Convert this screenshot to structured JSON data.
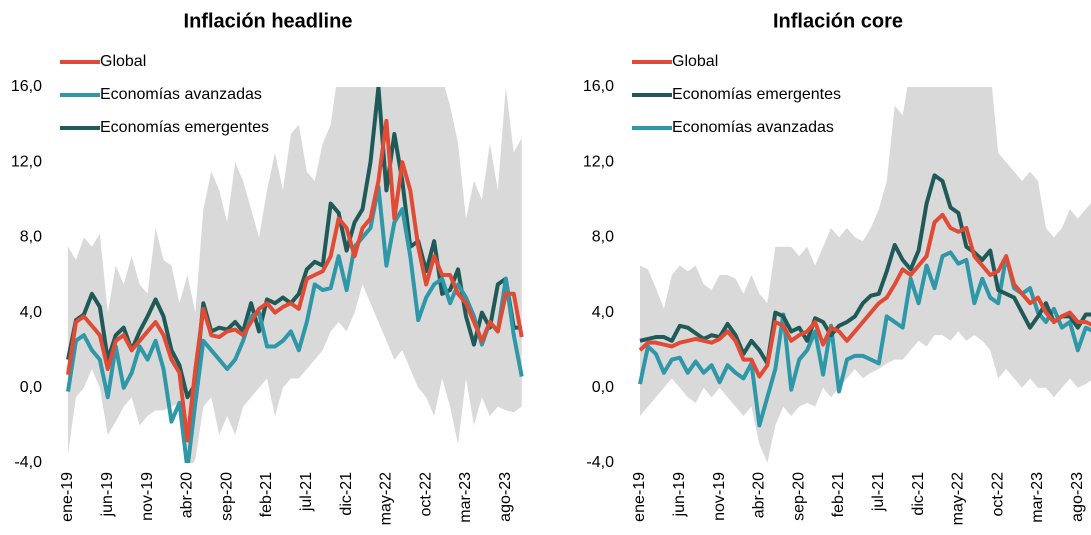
{
  "chart_data": [
    {
      "type": "line",
      "title": "Inflación headline",
      "categories": [
        "ene-19",
        null,
        null,
        null,
        null,
        "jun-19",
        null,
        null,
        null,
        null,
        "nov-19",
        null,
        null,
        null,
        null,
        "abr-20",
        null,
        null,
        null,
        null,
        "sep-20",
        null,
        null,
        null,
        null,
        "feb-21",
        null,
        null,
        null,
        null,
        "jul-21",
        null,
        null,
        null,
        null,
        "dic-21",
        null,
        null,
        null,
        null,
        "may-22",
        null,
        null,
        null,
        null,
        "oct-22",
        null,
        null,
        null,
        null,
        "mar-23",
        null,
        null,
        null,
        null,
        "ago-23",
        null,
        null
      ],
      "ylim": [
        -4,
        16
      ],
      "yticks": [
        {
          "value": -4,
          "label": "-4,0"
        },
        {
          "value": 0,
          "label": "0,0"
        },
        {
          "value": 4,
          "label": "4,0"
        },
        {
          "value": 8,
          "label": "8,0"
        },
        {
          "value": 12,
          "label": "12,0"
        },
        {
          "value": 16,
          "label": "16,0"
        }
      ],
      "legend": "top-left",
      "band": {
        "color": "#d9d9d9",
        "upper": [
          7.5,
          6.8,
          8.0,
          7.5,
          8.2,
          4.0,
          6.5,
          5.5,
          7.0,
          5.5,
          5.0,
          8.5,
          6.8,
          6.5,
          4.5,
          6.0,
          4.0,
          9.5,
          11.5,
          10.5,
          8.8,
          12.0,
          11.0,
          9.5,
          8.0,
          10.5,
          12.5,
          10.5,
          13.5,
          14.0,
          11.5,
          11.0,
          13.0,
          14.0,
          17.0,
          17.0,
          17.0,
          17.0,
          17.0,
          17.0,
          17.0,
          17.0,
          17.0,
          17.0,
          17.0,
          17.0,
          17.0,
          16.5,
          15.0,
          13.0,
          9.0,
          11.0,
          10.0,
          13.0,
          10.5,
          16.0,
          12.5,
          13.3
        ],
        "lower": [
          -3.5,
          -0.5,
          0.0,
          1.0,
          0.0,
          -2.5,
          -1.8,
          -1.0,
          -0.5,
          -2.0,
          -1.5,
          -1.2,
          -1.2,
          -1.0,
          -0.8,
          -4.5,
          -3.8,
          -1.0,
          -0.5,
          -2.5,
          -1.5,
          -2.5,
          -1.0,
          -0.5,
          0.0,
          0.5,
          -1.5,
          0.0,
          0.5,
          0.5,
          1.0,
          1.5,
          2.0,
          3.0,
          3.5,
          3.0,
          4.0,
          5.5,
          4.5,
          3.5,
          2.5,
          1.5,
          2.0,
          1.0,
          0.0,
          -0.5,
          -1.5,
          0.5,
          -1.0,
          -3.0,
          0.5,
          -2.0,
          -0.5,
          -1.5,
          -1.0,
          -1.2,
          -1.3,
          -1.0
        ]
      },
      "series": [
        {
          "name": "Global",
          "color": "#e04b35",
          "values": [
            0.7,
            3.5,
            3.8,
            3.3,
            2.8,
            1.0,
            2.5,
            2.8,
            2.0,
            2.5,
            3.0,
            3.5,
            2.8,
            1.5,
            0.8,
            -2.8,
            1.0,
            4.2,
            2.8,
            2.7,
            3.0,
            3.1,
            2.8,
            3.5,
            4.2,
            4.5,
            4.0,
            4.3,
            4.5,
            4.2,
            5.8,
            6.0,
            6.2,
            7.0,
            9.0,
            8.5,
            7.0,
            8.5,
            9.0,
            11.0,
            14.2,
            9.0,
            12.0,
            10.5,
            7.5,
            5.5,
            7.0,
            6.0,
            6.0,
            5.0,
            4.5,
            3.5,
            2.5,
            3.5,
            3.0,
            5.0,
            5.0,
            2.7
          ]
        },
        {
          "name": "Economías avanzadas",
          "color": "#2e97a8",
          "values": [
            -0.2,
            2.5,
            2.8,
            2.0,
            1.5,
            -0.5,
            2.2,
            0.0,
            0.8,
            2.2,
            1.5,
            2.5,
            1.0,
            -1.8,
            -0.8,
            -4.3,
            -0.8,
            2.5,
            2.0,
            1.5,
            1.0,
            1.5,
            2.5,
            3.8,
            4.0,
            2.2,
            2.2,
            2.5,
            3.0,
            2.0,
            3.5,
            5.5,
            5.2,
            5.3,
            7.0,
            5.2,
            7.5,
            8.0,
            8.5,
            10.7,
            6.5,
            8.8,
            9.5,
            7.0,
            3.6,
            4.8,
            5.5,
            5.8,
            4.5,
            5.5,
            4.8,
            3.8,
            2.3,
            3.5,
            3.0,
            5.8,
            2.8,
            0.6
          ]
        },
        {
          "name": "Economías emergentes",
          "color": "#1f5a58",
          "values": [
            1.5,
            3.6,
            3.9,
            5.0,
            4.3,
            1.5,
            2.8,
            3.2,
            2.0,
            3.0,
            3.8,
            4.7,
            3.8,
            2.0,
            1.2,
            -0.5,
            0.2,
            4.5,
            3.0,
            3.2,
            3.1,
            3.5,
            3.0,
            4.5,
            3.0,
            4.7,
            4.5,
            4.8,
            4.5,
            5.0,
            6.3,
            6.7,
            6.5,
            9.8,
            9.3,
            7.3,
            8.8,
            9.5,
            12.0,
            16.0,
            10.5,
            13.5,
            11.0,
            7.5,
            7.8,
            6.2,
            7.8,
            5.0,
            5.2,
            6.3,
            3.8,
            2.3,
            4.0,
            3.2,
            5.5,
            5.8,
            3.2,
            3.2
          ]
        }
      ]
    },
    {
      "type": "line",
      "title": "Inflación core",
      "categories": [
        "ene-19",
        null,
        null,
        null,
        null,
        "jun-19",
        null,
        null,
        null,
        null,
        "nov-19",
        null,
        null,
        null,
        null,
        "abr-20",
        null,
        null,
        null,
        null,
        "sep-20",
        null,
        null,
        null,
        null,
        "feb-21",
        null,
        null,
        null,
        null,
        "jul-21",
        null,
        null,
        null,
        null,
        "dic-21",
        null,
        null,
        null,
        null,
        "may-22",
        null,
        null,
        null,
        null,
        "oct-22",
        null,
        null,
        null,
        null,
        "mar-23",
        null,
        null,
        null,
        null,
        "ago-23",
        null,
        null
      ],
      "ylim": [
        -4,
        16
      ],
      "yticks": [
        {
          "value": -4,
          "label": "-4,0"
        },
        {
          "value": 0,
          "label": "0,0"
        },
        {
          "value": 4,
          "label": "4,0"
        },
        {
          "value": 8,
          "label": "8,0"
        },
        {
          "value": 12,
          "label": "12,0"
        },
        {
          "value": 16,
          "label": "16,0"
        }
      ],
      "legend": "top-left",
      "band": {
        "color": "#d9d9d9",
        "upper": [
          6.5,
          6.3,
          5.3,
          4.2,
          6.0,
          6.5,
          6.2,
          6.5,
          5.5,
          5.2,
          6.0,
          6.0,
          5.8,
          5.0,
          6.0,
          5.0,
          4.5,
          7.5,
          7.5,
          7.5,
          7.0,
          7.5,
          6.5,
          7.5,
          8.5,
          8.0,
          8.5,
          8.0,
          7.8,
          8.5,
          9.5,
          11.0,
          15.0,
          14.5,
          17.0,
          17.0,
          17.0,
          17.0,
          17.0,
          17.0,
          17.0,
          17.0,
          17.0,
          17.0,
          17.0,
          12.5,
          12.0,
          11.5,
          11.0,
          11.5,
          11.0,
          8.5,
          8.0,
          8.5,
          9.5,
          9.0,
          9.5,
          10.0
        ],
        "lower": [
          -1.5,
          -1.0,
          -0.5,
          0.0,
          0.5,
          0.0,
          -0.5,
          -0.8,
          0.0,
          -0.5,
          0.0,
          -0.5,
          -1.0,
          -1.5,
          -1.0,
          -3.0,
          -4.0,
          -2.0,
          -1.0,
          -1.5,
          -1.0,
          -0.8,
          -1.0,
          0.0,
          -0.5,
          0.0,
          0.5,
          1.0,
          0.5,
          0.8,
          1.0,
          1.3,
          1.5,
          1.5,
          2.0,
          2.5,
          2.2,
          2.8,
          2.8,
          2.5,
          3.0,
          2.5,
          2.8,
          2.5,
          2.0,
          0.5,
          1.0,
          0.5,
          0.0,
          0.5,
          0.0,
          0.0,
          -0.5,
          0.0,
          0.5,
          0.0,
          0.2,
          0.5
        ]
      },
      "series": [
        {
          "name": "Global",
          "color": "#e04b35",
          "values": [
            2.0,
            2.4,
            2.4,
            2.3,
            2.2,
            2.4,
            2.5,
            2.6,
            2.5,
            2.4,
            2.6,
            3.0,
            2.5,
            1.5,
            1.5,
            0.6,
            1.2,
            3.5,
            3.3,
            2.5,
            2.8,
            3.0,
            3.5,
            2.3,
            3.2,
            3.0,
            2.5,
            3.0,
            3.5,
            4.0,
            4.5,
            4.8,
            5.5,
            6.3,
            6.0,
            6.5,
            7.0,
            8.8,
            9.2,
            8.5,
            8.3,
            8.5,
            7.0,
            6.5,
            6.0,
            6.2,
            7.0,
            5.5,
            5.0,
            4.5,
            4.8,
            4.0,
            3.5,
            3.8,
            4.0,
            3.5,
            3.5,
            3.3
          ]
        },
        {
          "name": "Economías emergentes",
          "color": "#1f5a58",
          "values": [
            2.5,
            2.6,
            2.7,
            2.7,
            2.5,
            3.3,
            3.2,
            2.9,
            2.6,
            2.8,
            2.7,
            3.4,
            2.8,
            1.8,
            2.5,
            2.0,
            1.3,
            4.0,
            3.8,
            3.0,
            3.2,
            2.5,
            3.7,
            3.5,
            2.8,
            3.3,
            3.5,
            3.8,
            4.5,
            4.9,
            5.0,
            6.2,
            7.6,
            6.8,
            6.3,
            7.3,
            9.8,
            11.3,
            11.0,
            9.6,
            9.3,
            7.5,
            7.2,
            6.8,
            7.3,
            5.2,
            5.0,
            4.8,
            4.0,
            3.2,
            3.8,
            4.5,
            3.5,
            3.8,
            3.8,
            3.2,
            3.9,
            3.9
          ]
        },
        {
          "name": "Economías avanzadas",
          "color": "#2e97a8",
          "values": [
            0.2,
            2.2,
            1.8,
            0.8,
            1.5,
            1.6,
            0.8,
            1.4,
            0.8,
            1.2,
            0.3,
            1.2,
            0.8,
            0.5,
            1.3,
            -2.0,
            -0.5,
            1.0,
            3.9,
            -0.1,
            1.5,
            2.0,
            3.0,
            0.7,
            3.3,
            -0.2,
            1.5,
            1.7,
            1.7,
            1.5,
            1.3,
            3.8,
            3.5,
            3.2,
            5.8,
            4.5,
            6.5,
            5.3,
            7.0,
            7.2,
            6.6,
            6.8,
            4.5,
            5.8,
            4.8,
            4.5,
            7.0,
            5.3,
            5.0,
            5.3,
            4.0,
            3.5,
            4.2,
            3.2,
            3.5,
            2.0,
            3.2,
            3.0
          ]
        }
      ]
    }
  ]
}
